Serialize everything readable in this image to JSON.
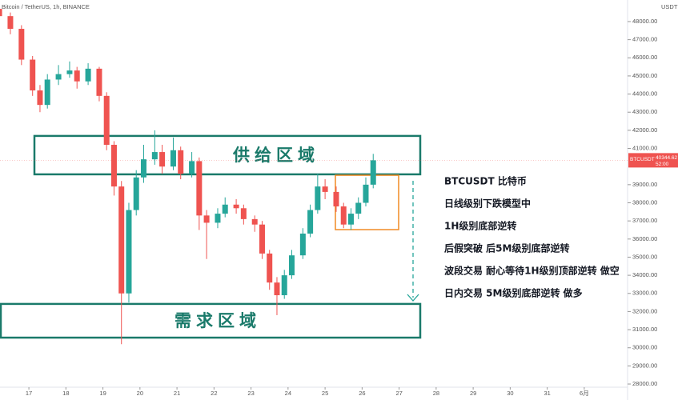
{
  "chart_data": {
    "type": "candlestick",
    "header": "Bitcoin / TetherUS, 1h, BINANCE",
    "currency": "USDT",
    "symbol_tag": "BTCUSDT",
    "countdown": "52:00",
    "last_price": {
      "value": 40344.62,
      "label": "40344.62"
    },
    "up_color": "#26a69a",
    "down_color": "#ef5350",
    "x": [
      16.2,
      16.5,
      16.8,
      17.1,
      17.3,
      17.5,
      17.8,
      18.1,
      18.3,
      18.6,
      18.9,
      19.1,
      19.3,
      19.5,
      19.7,
      19.9,
      20.1,
      20.4,
      20.6,
      20.9,
      21.1,
      21.4,
      21.6,
      21.8,
      22.1,
      22.3,
      22.6,
      22.8,
      23.1,
      23.3,
      23.5,
      23.7,
      23.9,
      24.1,
      24.4,
      24.6,
      24.8,
      25.0,
      25.3,
      25.5,
      25.7,
      25.9,
      26.1,
      26.3
    ],
    "open": [
      48700,
      48300,
      47600,
      45900,
      44200,
      43400,
      44800,
      45100,
      45300,
      44700,
      45400,
      43900,
      41200,
      38900,
      33000,
      37600,
      39400,
      40400,
      40800,
      40000,
      40900,
      39600,
      40300,
      37300,
      36900,
      37400,
      37900,
      37700,
      37100,
      36800,
      35200,
      33600,
      32900,
      34000,
      35100,
      36300,
      37600,
      38900,
      38600,
      37800,
      36800,
      37400,
      38000,
      39000
    ],
    "high": [
      49000,
      48500,
      47800,
      46100,
      44500,
      45100,
      45600,
      45800,
      45500,
      45700,
      45500,
      44100,
      41400,
      39200,
      38000,
      39800,
      41200,
      42000,
      41200,
      41600,
      41100,
      40800,
      40500,
      37600,
      37700,
      38300,
      38200,
      37900,
      37300,
      37000,
      35400,
      33900,
      34300,
      35400,
      36600,
      37900,
      39600,
      39300,
      38900,
      38000,
      37700,
      38300,
      39400,
      40700
    ],
    "low": [
      48000,
      47300,
      45600,
      43900,
      43000,
      43200,
      44500,
      44900,
      44300,
      44500,
      43600,
      40900,
      38400,
      30200,
      32500,
      37300,
      39100,
      40100,
      39600,
      39800,
      39300,
      39400,
      36500,
      34900,
      36600,
      37200,
      37400,
      36800,
      36400,
      34900,
      33200,
      31800,
      32700,
      33800,
      34900,
      36100,
      37400,
      38200,
      37500,
      36600,
      36500,
      37100,
      37800,
      38800
    ],
    "close": [
      48300,
      47600,
      45900,
      44200,
      43400,
      44800,
      45100,
      45300,
      44700,
      45400,
      43900,
      41200,
      38900,
      33000,
      37600,
      39400,
      40400,
      40800,
      40000,
      40900,
      39600,
      40300,
      37300,
      36900,
      37400,
      37900,
      37700,
      37100,
      36800,
      35200,
      33600,
      32900,
      34000,
      35100,
      36300,
      37600,
      38900,
      38600,
      37800,
      36800,
      37400,
      38000,
      39000,
      40344.62
    ],
    "xlim": [
      16.22,
      33.17
    ],
    "xticks": [
      17,
      18,
      19,
      20,
      21,
      22,
      23,
      24,
      25,
      26,
      27,
      28,
      29,
      30,
      31,
      {
        "value": 32,
        "label": "6月"
      }
    ],
    "ylim": [
      27560,
      49190
    ],
    "yticks": [
      {
        "value": 28000,
        "label": "28000.00"
      },
      {
        "value": 29000,
        "label": "29000.00"
      },
      {
        "value": 30000,
        "label": "30000.00"
      },
      {
        "value": 31000,
        "label": "31000.00"
      },
      {
        "value": 32000,
        "label": "32000.00"
      },
      {
        "value": 33000,
        "label": "33000.00"
      },
      {
        "value": 34000,
        "label": "34000.00"
      },
      {
        "value": 35000,
        "label": "35000.00"
      },
      {
        "value": 36000,
        "label": "36000.00"
      },
      {
        "value": 37000,
        "label": "37000.00"
      },
      {
        "value": 38000,
        "label": "38000.00"
      },
      {
        "value": 39000,
        "label": "39000.00"
      },
      {
        "value": 41000,
        "label": "41000.00"
      },
      {
        "value": 42000,
        "label": "42000.00"
      },
      {
        "value": 43000,
        "label": "43000.00"
      },
      {
        "value": 44000,
        "label": "44000.00"
      },
      {
        "value": 45000,
        "label": "45000.00"
      },
      {
        "value": 46000,
        "label": "46000.00"
      },
      {
        "value": 47000,
        "label": "47000.00"
      },
      {
        "value": 48000,
        "label": "48000.00"
      }
    ],
    "zones": [
      {
        "label": "供给区域",
        "low": 39570,
        "high": 41690
      },
      {
        "label": "需求区域",
        "low": 30560,
        "high": 32420
      }
    ],
    "box": {
      "low": 36520,
      "high": 39520
    },
    "notes": [
      "BTCUSDT 比特币",
      "日线级别下跌模型中",
      "1H级别底部逆转",
      "后假突破 后5M级别底部逆转",
      "波段交易 耐心等待1H级别顶部逆转 做空",
      "日内交易 5M级别底部逆转 做多"
    ]
  }
}
